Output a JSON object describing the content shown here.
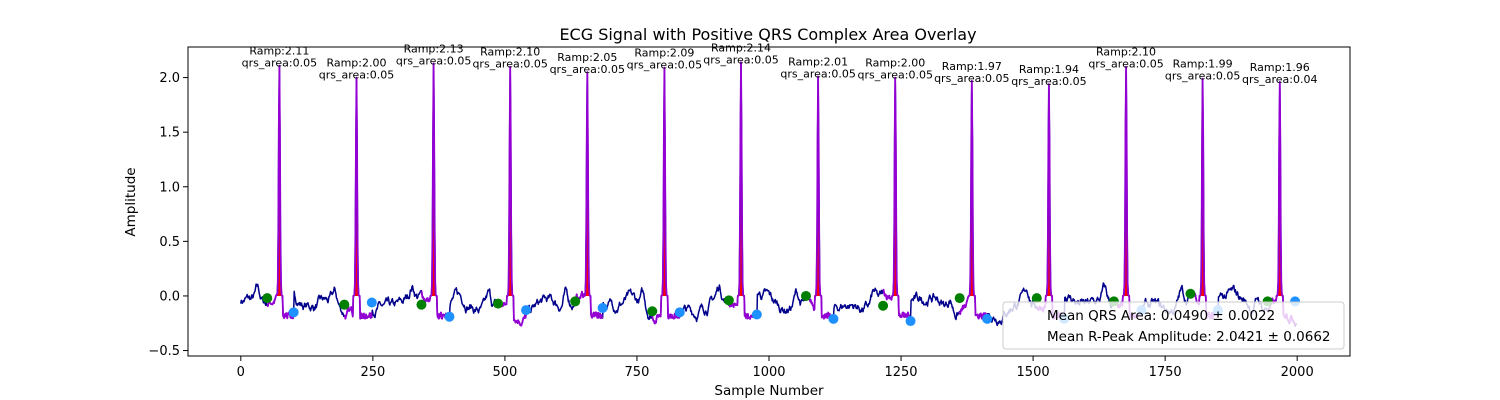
{
  "chart_data": {
    "type": "line",
    "title": "ECG Signal with Positive QRS Complex Area Overlay",
    "xlabel": "Sample Number",
    "ylabel": "Amplitude",
    "xlim": [
      -100,
      2100
    ],
    "ylim": [
      -0.55,
      2.28
    ],
    "xticks": [
      0,
      250,
      500,
      750,
      1000,
      1250,
      1500,
      1750,
      2000
    ],
    "yticks": [
      -0.5,
      0.0,
      0.5,
      1.0,
      1.5,
      2.0
    ],
    "grid": false,
    "colors": {
      "ecg": "#00008b",
      "qrs_line": "#9400d3",
      "qrs_fill": "#ff0000",
      "onset": "#008000",
      "offset": "#1e90ff"
    },
    "beats": [
      {
        "r_sample": 73,
        "r_amp": 2.11,
        "qrs_area": 0.05,
        "onset": [
          50,
          -0.02
        ],
        "offset": [
          100,
          -0.15
        ],
        "label_r": "Ramp:2.11",
        "label_area": "qrs_area:0.05"
      },
      {
        "r_sample": 219,
        "r_amp": 2.0,
        "qrs_area": 0.05,
        "onset": [
          196,
          -0.08
        ],
        "offset": [
          248,
          -0.06
        ],
        "label_r": "Ramp:2.00",
        "label_area": "qrs_area:0.05"
      },
      {
        "r_sample": 365,
        "r_amp": 2.13,
        "qrs_area": 0.05,
        "onset": [
          342,
          -0.08
        ],
        "offset": [
          395,
          -0.19
        ],
        "label_r": "Ramp:2.13",
        "label_area": "qrs_area:0.05"
      },
      {
        "r_sample": 510,
        "r_amp": 2.1,
        "qrs_area": 0.05,
        "onset": [
          487,
          -0.07
        ],
        "offset": [
          540,
          -0.13
        ],
        "label_r": "Ramp:2.10",
        "label_area": "qrs_area:0.05"
      },
      {
        "r_sample": 656,
        "r_amp": 2.05,
        "qrs_area": 0.05,
        "onset": [
          633,
          -0.05
        ],
        "offset": [
          685,
          -0.11
        ],
        "label_r": "Ramp:2.05",
        "label_area": "qrs_area:0.05"
      },
      {
        "r_sample": 802,
        "r_amp": 2.09,
        "qrs_area": 0.05,
        "onset": [
          779,
          -0.14
        ],
        "offset": [
          831,
          -0.15
        ],
        "label_r": "Ramp:2.09",
        "label_area": "qrs_area:0.05"
      },
      {
        "r_sample": 947,
        "r_amp": 2.14,
        "qrs_area": 0.05,
        "onset": [
          924,
          -0.04
        ],
        "offset": [
          977,
          -0.17
        ],
        "label_r": "Ramp:2.14",
        "label_area": "qrs_area:0.05"
      },
      {
        "r_sample": 1093,
        "r_amp": 2.01,
        "qrs_area": 0.05,
        "onset": [
          1070,
          0.0
        ],
        "offset": [
          1122,
          -0.21
        ],
        "label_r": "Ramp:2.01",
        "label_area": "qrs_area:0.05"
      },
      {
        "r_sample": 1239,
        "r_amp": 2.0,
        "qrs_area": 0.05,
        "onset": [
          1216,
          -0.09
        ],
        "offset": [
          1268,
          -0.23
        ],
        "label_r": "Ramp:2.00",
        "label_area": "qrs_area:0.05"
      },
      {
        "r_sample": 1384,
        "r_amp": 1.97,
        "qrs_area": 0.05,
        "onset": [
          1361,
          -0.02
        ],
        "offset": [
          1413,
          -0.21
        ],
        "label_r": "Ramp:1.97",
        "label_area": "qrs_area:0.05"
      },
      {
        "r_sample": 1530,
        "r_amp": 1.94,
        "qrs_area": 0.05,
        "onset": [
          1507,
          -0.02
        ],
        "offset": [
          1559,
          -0.21
        ],
        "label_r": "Ramp:1.94",
        "label_area": "qrs_area:0.05"
      },
      {
        "r_sample": 1676,
        "r_amp": 2.1,
        "qrs_area": 0.05,
        "onset": [
          1653,
          -0.05
        ],
        "offset": [
          1705,
          -0.13
        ],
        "label_r": "Ramp:2.10",
        "label_area": "qrs_area:0.05"
      },
      {
        "r_sample": 1821,
        "r_amp": 1.99,
        "qrs_area": 0.05,
        "onset": [
          1798,
          0.02
        ],
        "offset": [
          1850,
          -0.13
        ],
        "label_r": "Ramp:1.99",
        "label_area": "qrs_area:0.05"
      },
      {
        "r_sample": 1967,
        "r_amp": 1.96,
        "qrs_area": 0.04,
        "onset": [
          1944,
          -0.05
        ],
        "offset": [
          1996,
          -0.05
        ],
        "label_r": "Ramp:1.96",
        "label_area": "qrs_area:0.04"
      }
    ],
    "legend": {
      "placement": "lower-right",
      "entries": [
        "Mean QRS Area: 0.0490 ± 0.0022",
        "Mean R-Peak Amplitude: 2.0421 ± 0.0662"
      ]
    }
  }
}
